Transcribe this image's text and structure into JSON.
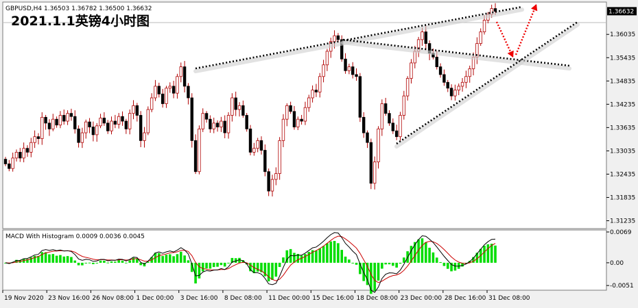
{
  "header": {
    "symbol_line": "GBPUSD,H4  1.36503 1.36782 1.36500 1.36632",
    "overlay_title": "2021.1.1英镑4小时图"
  },
  "price_axis": {
    "ticks": [
      "1.36035",
      "1.35435",
      "1.34835",
      "1.34235",
      "1.33635",
      "1.33035",
      "1.32435",
      "1.31835",
      "1.31235"
    ],
    "current_price": "1.36632"
  },
  "macd": {
    "label": "MACD With Histogram 0.0009 0.0036 0.0045",
    "ticks": [
      "0.0069",
      "0.00",
      "-0.0051"
    ]
  },
  "time_axis": {
    "labels": [
      "19 Nov 2020",
      "23 Nov 16:00",
      "26 Nov 08:00",
      "1 Dec 00:00",
      "3 Dec 16:00",
      "8 Dec 08:00",
      "11 Dec 00:00",
      "15 Dec 16:00",
      "18 Dec 08:00",
      "23 Dec 00:00",
      "28 Dec 16:00",
      "31 Dec 08:00"
    ]
  },
  "colors": {
    "bull": "#ffffff",
    "bear": "#000000",
    "wick": "#b00000",
    "histogram": "#00dd00",
    "macd_line": "#000000",
    "signal_line": "#cc0000",
    "pattern_line": "#000000",
    "arrow": "#ee0000"
  },
  "chart_data": [
    {
      "type": "candlestick",
      "series": [
        {
          "name": "GBPUSD,H4"
        }
      ],
      "ylim": [
        1.3105,
        1.3685
      ],
      "close_path": [
        1.327,
        1.3258,
        1.3285,
        1.33,
        1.3285,
        1.331,
        1.33,
        1.3325,
        1.334,
        1.3335,
        1.339,
        1.3375,
        1.336,
        1.3385,
        1.337,
        1.3395,
        1.338,
        1.34,
        1.3392,
        1.336,
        1.3325,
        1.335,
        1.3378,
        1.3365,
        1.3345,
        1.3368,
        1.3388,
        1.3375,
        1.3355,
        1.338,
        1.3372,
        1.3392,
        1.338,
        1.336,
        1.34,
        1.342,
        1.3395,
        1.333,
        1.335,
        1.341,
        1.344,
        1.347,
        1.345,
        1.3425,
        1.3465,
        1.347,
        1.3452,
        1.3495,
        1.352,
        1.347,
        1.344,
        1.333,
        1.325,
        1.336,
        1.34,
        1.3385,
        1.336,
        1.3375,
        1.3365,
        1.338,
        1.335,
        1.3395,
        1.344,
        1.341,
        1.342,
        1.3395,
        1.336,
        1.33,
        1.331,
        1.333,
        1.3305,
        1.325,
        1.32,
        1.323,
        1.3245,
        1.333,
        1.3385,
        1.342,
        1.3405,
        1.3365,
        1.3385,
        1.338,
        1.3415,
        1.344,
        1.346,
        1.3455,
        1.3495,
        1.3525,
        1.356,
        1.3585,
        1.36,
        1.359,
        1.354,
        1.351,
        1.352,
        1.35,
        1.3495,
        1.339,
        1.335,
        1.3325,
        1.322,
        1.3275,
        1.336,
        1.3425,
        1.34,
        1.3375,
        1.3355,
        1.334,
        1.3395,
        1.3445,
        1.349,
        1.353,
        1.356,
        1.359,
        1.361,
        1.358,
        1.3555,
        1.3545,
        1.352,
        1.35,
        1.348,
        1.3465,
        1.3445,
        1.346,
        1.347,
        1.348,
        1.3495,
        1.3515,
        1.3545,
        1.358,
        1.361,
        1.364,
        1.3655,
        1.367,
        1.3663
      ]
    },
    {
      "type": "bar",
      "series": [
        {
          "name": "MACD With Histogram"
        }
      ],
      "ylim": [
        -0.006,
        0.0072
      ]
    }
  ]
}
